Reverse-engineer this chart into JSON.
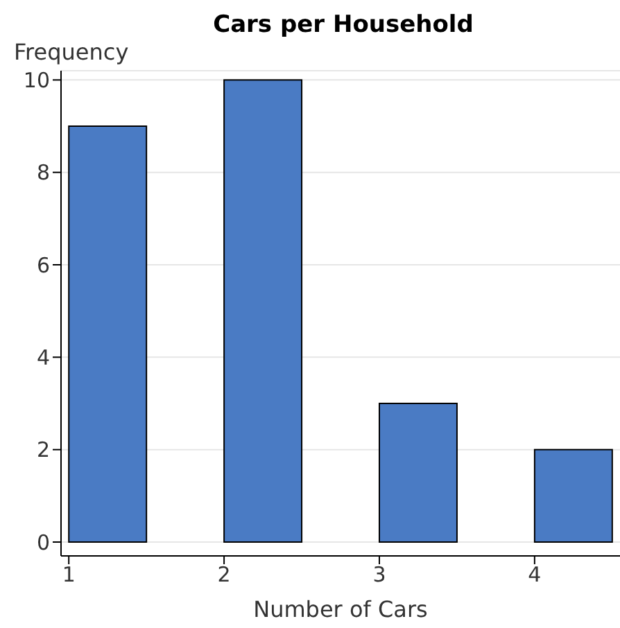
{
  "chart_data": {
    "type": "histogram",
    "title": "Cars per Household",
    "xlabel": "Number of Cars",
    "ylabel": "Frequency",
    "bins": [
      1,
      1.5,
      2,
      2.5,
      3,
      3.5,
      4,
      4.5
    ],
    "values": [
      9,
      0,
      10,
      0,
      3,
      0,
      2
    ],
    "color": "#4a7bc4",
    "xlim": [
      0.95,
      4.55
    ],
    "xticks": [
      1,
      2,
      3,
      4
    ],
    "ylim": [
      -0.3,
      10.2
    ],
    "yticks": [
      0,
      2,
      4,
      6,
      8,
      10
    ],
    "grid": "y"
  }
}
